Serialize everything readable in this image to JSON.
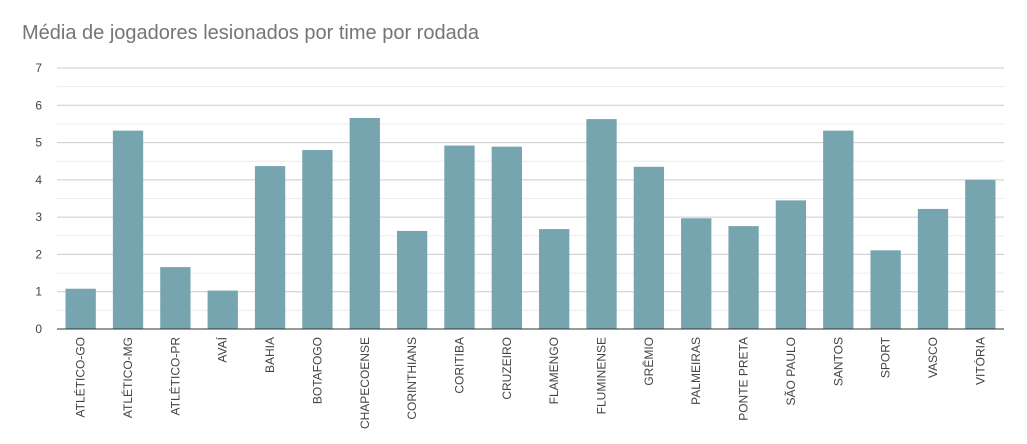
{
  "chart_data": {
    "type": "bar",
    "title": "Média de jogadores lesionados por time por rodada",
    "xlabel": "",
    "ylabel": "",
    "ylim": [
      0,
      7
    ],
    "yticks": [
      0,
      1,
      2,
      3,
      4,
      5,
      6,
      7
    ],
    "grid": true,
    "legend": "none",
    "bar_color": "#76a5af",
    "categories": [
      "ATLÉTICO-GO",
      "ATLÉTICO-MG",
      "ATLÉTICO-PR",
      "AVAÍ",
      "BAHIA",
      "BOTAFOGO",
      "CHAPECOENSE",
      "CORINTHIANS",
      "CORITIBA",
      "CRUZEIRO",
      "FLAMENGO",
      "FLUMINENSE",
      "GRÊMIO",
      "PALMEIRAS",
      "PONTE PRETA",
      "SÃO PAULO",
      "SANTOS",
      "SPORT",
      "VASCO",
      "VITÓRIA"
    ],
    "values": [
      1.08,
      5.32,
      1.66,
      1.03,
      4.37,
      4.8,
      5.66,
      2.63,
      4.92,
      4.89,
      2.68,
      5.63,
      4.35,
      2.97,
      2.76,
      3.45,
      5.32,
      2.11,
      3.22,
      4.0
    ]
  }
}
